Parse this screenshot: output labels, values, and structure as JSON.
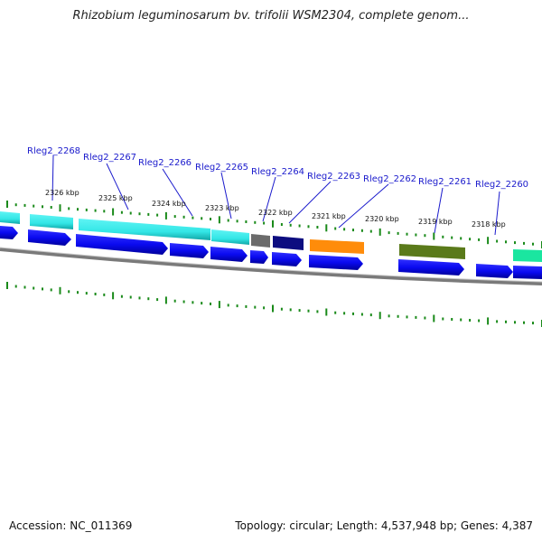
{
  "title": "Rhizobium leguminosarum bv. trifolii WSM2304, complete genom...",
  "footer": {
    "accession": "Accession: NC_011369",
    "summary": "Topology: circular; Length: 4,537,948 bp; Genes: 4,387"
  },
  "scale_ticks": [
    "2326 kbp",
    "2325 kbp",
    "2324 kbp",
    "2323 kbp",
    "2322 kbp",
    "2321 kbp",
    "2320 kbp",
    "2319 kbp",
    "2318 kbp"
  ],
  "genes": [
    {
      "name": "Rleg2_2268",
      "color": "#1a1acc"
    },
    {
      "name": "Rleg2_2267",
      "color": "#1a1acc"
    },
    {
      "name": "Rleg2_2266",
      "color": "#1a1acc"
    },
    {
      "name": "Rleg2_2265",
      "color": "#1a1acc"
    },
    {
      "name": "Rleg2_2264",
      "color": "#1a1acc"
    },
    {
      "name": "Rleg2_2263",
      "color": "#1a1acc"
    },
    {
      "name": "Rleg2_2262",
      "color": "#1a1acc"
    },
    {
      "name": "Rleg2_2261",
      "color": "#1a1acc"
    },
    {
      "name": "Rleg2_2260",
      "color": "#1a1acc"
    }
  ],
  "colors": {
    "cds": "#0a0af0",
    "cyan": "#33e6e6",
    "navy": "#0d0d80",
    "gray": "#6b6b6b",
    "orange": "#ff8c0a",
    "olive": "#5a7a1a",
    "teal": "#1ae6a0",
    "tick": "#1a8a1a",
    "backbone": "#7a7a7a"
  }
}
